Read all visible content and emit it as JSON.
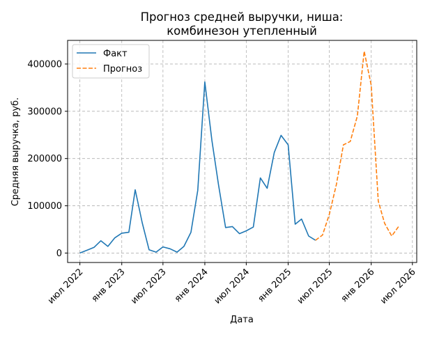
{
  "chart_data": {
    "type": "line",
    "title_line1": "Прогноз средней выручки, ниша:",
    "title_line2": "комбинезон утепленный",
    "xlabel": "Дата",
    "ylabel": "Средняя выручка, руб.",
    "ylim": [
      -20000,
      450000
    ],
    "xlim": [
      "2022-05-08",
      "2026-07-20"
    ],
    "grid": true,
    "legend_position": "top-left",
    "x_ticks": [
      {
        "date": "2022-07-01",
        "label": "июл 2022"
      },
      {
        "date": "2023-01-01",
        "label": "янв 2023"
      },
      {
        "date": "2023-07-01",
        "label": "июл 2023"
      },
      {
        "date": "2024-01-01",
        "label": "янв 2024"
      },
      {
        "date": "2024-07-01",
        "label": "июл 2024"
      },
      {
        "date": "2025-01-01",
        "label": "янв 2025"
      },
      {
        "date": "2025-07-01",
        "label": "июл 2025"
      },
      {
        "date": "2026-01-01",
        "label": "янв 2026"
      },
      {
        "date": "2026-07-01",
        "label": "июл 2026"
      }
    ],
    "y_ticks": [
      {
        "value": 0,
        "label": "0"
      },
      {
        "value": 100000,
        "label": "100000"
      },
      {
        "value": 200000,
        "label": "200000"
      },
      {
        "value": 300000,
        "label": "300000"
      },
      {
        "value": 400000,
        "label": "400000"
      }
    ],
    "series": [
      {
        "name": "Факт",
        "color": "#1f77b4",
        "dash": "solid",
        "points": [
          {
            "x": "2022-07-01",
            "y": 0
          },
          {
            "x": "2022-08-01",
            "y": 6000
          },
          {
            "x": "2022-09-01",
            "y": 12000
          },
          {
            "x": "2022-10-01",
            "y": 26000
          },
          {
            "x": "2022-11-01",
            "y": 14000
          },
          {
            "x": "2022-12-01",
            "y": 32000
          },
          {
            "x": "2023-01-01",
            "y": 42000
          },
          {
            "x": "2023-02-01",
            "y": 44000
          },
          {
            "x": "2023-03-01",
            "y": 134000
          },
          {
            "x": "2023-04-01",
            "y": 64000
          },
          {
            "x": "2023-05-01",
            "y": 7000
          },
          {
            "x": "2023-06-01",
            "y": 2000
          },
          {
            "x": "2023-07-01",
            "y": 13000
          },
          {
            "x": "2023-08-01",
            "y": 9000
          },
          {
            "x": "2023-09-01",
            "y": 2000
          },
          {
            "x": "2023-10-01",
            "y": 14000
          },
          {
            "x": "2023-11-01",
            "y": 44000
          },
          {
            "x": "2023-12-01",
            "y": 133000
          },
          {
            "x": "2024-01-01",
            "y": 362000
          },
          {
            "x": "2024-02-01",
            "y": 238000
          },
          {
            "x": "2024-03-01",
            "y": 145000
          },
          {
            "x": "2024-04-01",
            "y": 54000
          },
          {
            "x": "2024-05-01",
            "y": 56000
          },
          {
            "x": "2024-06-01",
            "y": 41000
          },
          {
            "x": "2024-07-01",
            "y": 47000
          },
          {
            "x": "2024-08-01",
            "y": 55000
          },
          {
            "x": "2024-09-01",
            "y": 159000
          },
          {
            "x": "2024-10-01",
            "y": 137000
          },
          {
            "x": "2024-11-01",
            "y": 213000
          },
          {
            "x": "2024-12-01",
            "y": 249000
          },
          {
            "x": "2025-01-01",
            "y": 229000
          },
          {
            "x": "2025-02-01",
            "y": 61000
          },
          {
            "x": "2025-03-01",
            "y": 72000
          },
          {
            "x": "2025-04-01",
            "y": 36000
          },
          {
            "x": "2025-05-01",
            "y": 27000
          }
        ]
      },
      {
        "name": "Прогноз",
        "color": "#ff7f0e",
        "dash": "dashed",
        "points": [
          {
            "x": "2025-05-01",
            "y": 27000
          },
          {
            "x": "2025-06-01",
            "y": 38000
          },
          {
            "x": "2025-07-01",
            "y": 82000
          },
          {
            "x": "2025-08-01",
            "y": 145000
          },
          {
            "x": "2025-09-01",
            "y": 229000
          },
          {
            "x": "2025-10-01",
            "y": 236000
          },
          {
            "x": "2025-11-01",
            "y": 290000
          },
          {
            "x": "2025-12-01",
            "y": 427000
          },
          {
            "x": "2026-01-01",
            "y": 355000
          },
          {
            "x": "2026-02-01",
            "y": 110000
          },
          {
            "x": "2026-03-01",
            "y": 63000
          },
          {
            "x": "2026-04-01",
            "y": 36000
          },
          {
            "x": "2026-05-01",
            "y": 56000
          }
        ]
      }
    ]
  }
}
